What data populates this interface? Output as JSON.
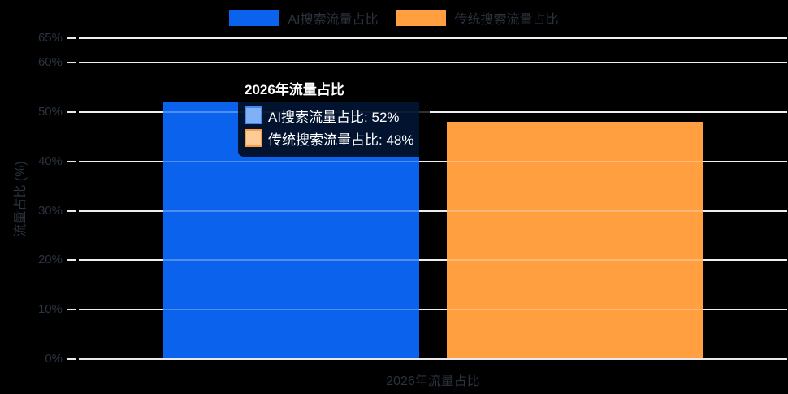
{
  "page": {
    "background": "#000000",
    "text_color": "#2b333f",
    "grid_color": "#e8e8ed"
  },
  "legend": {
    "items": [
      {
        "id": "ai-search",
        "label": "AI搜索流量占比",
        "color": "#0b62ec"
      },
      {
        "id": "traditional-search",
        "label": "传统搜索流量占比",
        "color": "#ff9f40"
      }
    ]
  },
  "chart_data": {
    "type": "bar",
    "title": "",
    "categories": [
      "2026年流量占比"
    ],
    "series": [
      {
        "name": "AI搜索流量占比",
        "values": [
          52
        ],
        "color": "#0b62ec"
      },
      {
        "name": "传统搜索流量占比",
        "values": [
          48
        ],
        "color": "#ff9f40"
      }
    ],
    "xlabel": "2026年流量占比",
    "ylabel": "流量占比 (%)",
    "ylim": [
      0,
      65
    ],
    "yticks": [
      0,
      10,
      20,
      30,
      40,
      50,
      60,
      65
    ],
    "ytick_labels": [
      "0%",
      "10%",
      "20%",
      "30%",
      "40%",
      "50%",
      "60%",
      "65%"
    ],
    "grid": true,
    "legend_position": "top"
  },
  "tooltip": {
    "title": "2026年流量占比",
    "rows": [
      {
        "label": "AI搜索流量占比",
        "value": "52%",
        "swatch_fill": "#7fb1f4",
        "swatch_border": "#4187f0"
      },
      {
        "label": "传统搜索流量占比",
        "value": "48%",
        "swatch_fill": "#fccb98",
        "swatch_border": "#fa9e44"
      }
    ]
  }
}
